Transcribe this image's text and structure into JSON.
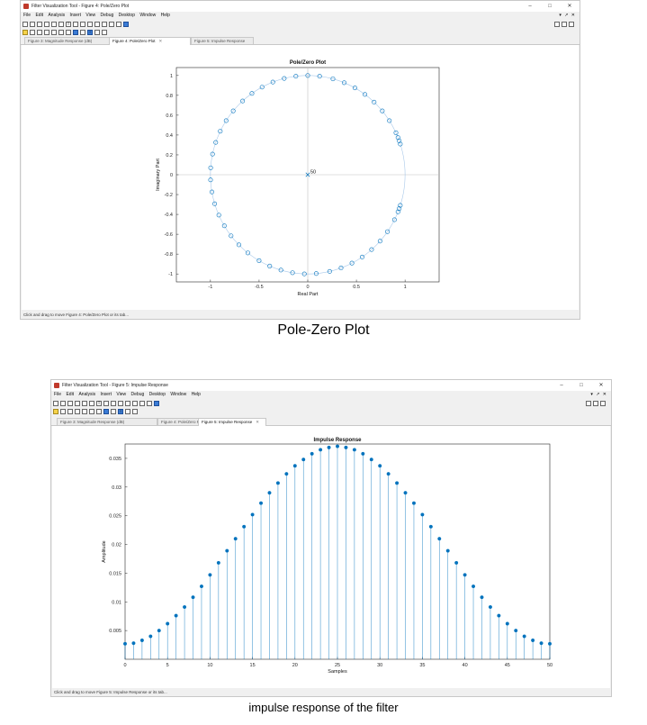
{
  "pz_window": {
    "title": "Filter Visualization Tool - Figure 4: Pole/Zero Plot",
    "menus": [
      "File",
      "Edit",
      "Analysis",
      "Insert",
      "View",
      "Debug",
      "Desktop",
      "Window",
      "Help"
    ],
    "tabs": [
      {
        "label": "Figure 3: Magnitude Response (dB)",
        "active": false
      },
      {
        "label": "Figure 4: Pole/Zero Plot",
        "active": true
      },
      {
        "label": "Figure 5: Impulse Response",
        "active": false
      }
    ],
    "status": "Click and drag to move Figure 4: Pole/Zero Plot or its tab..."
  },
  "pz_caption": "Pole-Zero Plot",
  "ir_window": {
    "title": "Filter Visualization Tool - Figure 5: Impulse Response",
    "menus": [
      "File",
      "Edit",
      "Analysis",
      "Insert",
      "View",
      "Debug",
      "Desktop",
      "Window",
      "Help"
    ],
    "tabs": [
      {
        "label": "Figure 3: Magnitude Response (dB)",
        "active": false
      },
      {
        "label": "Figure 4: Pole/Zero Plot",
        "active": false
      },
      {
        "label": "Figure 5: Impulse Response",
        "active": true
      }
    ],
    "status": "Click and drag to move Figure 5: Impulse Response or its tab..."
  },
  "ir_caption": "impulse response of the filter",
  "window_controls": {
    "minimize": "–",
    "maximize": "□",
    "close": "✕"
  },
  "colors": {
    "marker": "#0072bd",
    "unit_circle": "#a9c9ea",
    "axis_line": "#bfbfbf"
  },
  "chart_data": [
    {
      "type": "scatter",
      "title": "Pole/Zero Plot",
      "xlabel": "Real Part",
      "ylabel": "Imaginary Part",
      "xlim": [
        -1.35,
        1.35
      ],
      "ylim": [
        -1.08,
        1.08
      ],
      "xticks": [
        -1,
        -0.5,
        0,
        0.5,
        1
      ],
      "yticks": [
        -1,
        -0.8,
        -0.6,
        -0.4,
        -0.2,
        0,
        0.2,
        0.4,
        0.6,
        0.8,
        1
      ],
      "annotation": "50",
      "pole": {
        "x": 0,
        "y": 0,
        "multiplicity": 50
      },
      "zeros_angles_deg": [
        18,
        20,
        25,
        33,
        40,
        47,
        54,
        61,
        68,
        75,
        83,
        90,
        97,
        104,
        111,
        118,
        125,
        132,
        140,
        147,
        154,
        161,
        168,
        176,
        183,
        190,
        197,
        204,
        211,
        218,
        225,
        232,
        240,
        247,
        254,
        261,
        268,
        275,
        283,
        290,
        297,
        304,
        311,
        318,
        325,
        333,
        338,
        342,
        340,
        22
      ]
    },
    {
      "type": "stem",
      "title": "Impulse Response",
      "xlabel": "Samples",
      "ylabel": "Amplitude",
      "xlim": [
        0,
        50
      ],
      "ylim": [
        0,
        0.0375
      ],
      "xticks": [
        0,
        5,
        10,
        15,
        20,
        25,
        30,
        35,
        40,
        45,
        50
      ],
      "yticks": [
        0.005,
        0.01,
        0.015,
        0.02,
        0.025,
        0.03,
        0.035
      ],
      "x": [
        0,
        1,
        2,
        3,
        4,
        5,
        6,
        7,
        8,
        9,
        10,
        11,
        12,
        13,
        14,
        15,
        16,
        17,
        18,
        19,
        20,
        21,
        22,
        23,
        24,
        25,
        26,
        27,
        28,
        29,
        30,
        31,
        32,
        33,
        34,
        35,
        36,
        37,
        38,
        39,
        40,
        41,
        42,
        43,
        44,
        45,
        46,
        47,
        48,
        49,
        50
      ],
      "y": [
        0.0027,
        0.0028,
        0.0033,
        0.004,
        0.005,
        0.0062,
        0.0076,
        0.0091,
        0.0108,
        0.0127,
        0.0147,
        0.0168,
        0.0189,
        0.021,
        0.0231,
        0.0252,
        0.0272,
        0.029,
        0.0307,
        0.0323,
        0.0337,
        0.0348,
        0.0358,
        0.0365,
        0.0369,
        0.0371,
        0.0369,
        0.0365,
        0.0358,
        0.0348,
        0.0337,
        0.0323,
        0.0307,
        0.029,
        0.0272,
        0.0252,
        0.0231,
        0.021,
        0.0189,
        0.0168,
        0.0147,
        0.0127,
        0.0108,
        0.0091,
        0.0076,
        0.0062,
        0.005,
        0.004,
        0.0033,
        0.0028,
        0.0027
      ]
    }
  ]
}
